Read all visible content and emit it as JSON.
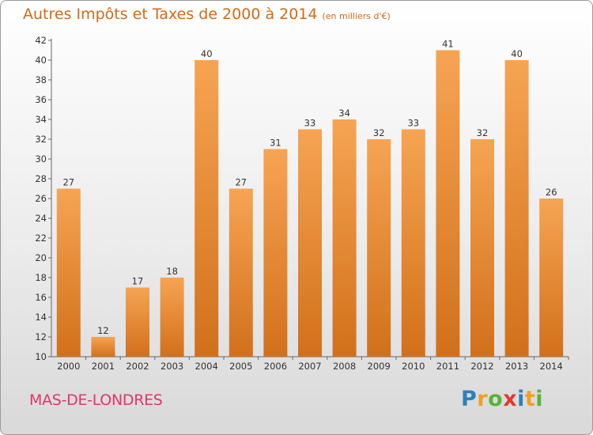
{
  "title": "Autres Impôts et Taxes de 2000 à 2014",
  "unit": "(en milliers d'€)",
  "commune": "MAS-DE-LONDRES",
  "logo": {
    "letters": [
      "P",
      "r",
      "o",
      "x",
      "i",
      "t",
      "i"
    ],
    "colors": [
      "#2d7fc1",
      "#f0a020",
      "#56b33b",
      "#e23a2e",
      "#2d7fc1",
      "#f0a020",
      "#56b33b"
    ]
  },
  "colors": {
    "bar_light": "#f6a453",
    "bar_dark": "#d2701a",
    "title": "#d36a17",
    "commune": "#e0356b"
  },
  "chart_data": {
    "type": "bar",
    "title": "Autres Impôts et Taxes de 2000 à 2014",
    "ylabel": "(en milliers d'€)",
    "categories": [
      "2000",
      "2001",
      "2002",
      "2003",
      "2004",
      "2005",
      "2006",
      "2007",
      "2008",
      "2009",
      "2010",
      "2011",
      "2012",
      "2013",
      "2014"
    ],
    "values": [
      27,
      12,
      17,
      18,
      40,
      27,
      31,
      33,
      34,
      32,
      33,
      41,
      32,
      40,
      26
    ],
    "yticks": [
      10,
      12,
      14,
      16,
      18,
      20,
      22,
      24,
      26,
      28,
      30,
      32,
      34,
      36,
      38,
      40,
      42
    ],
    "ylim": [
      10,
      42
    ],
    "grid": false
  }
}
